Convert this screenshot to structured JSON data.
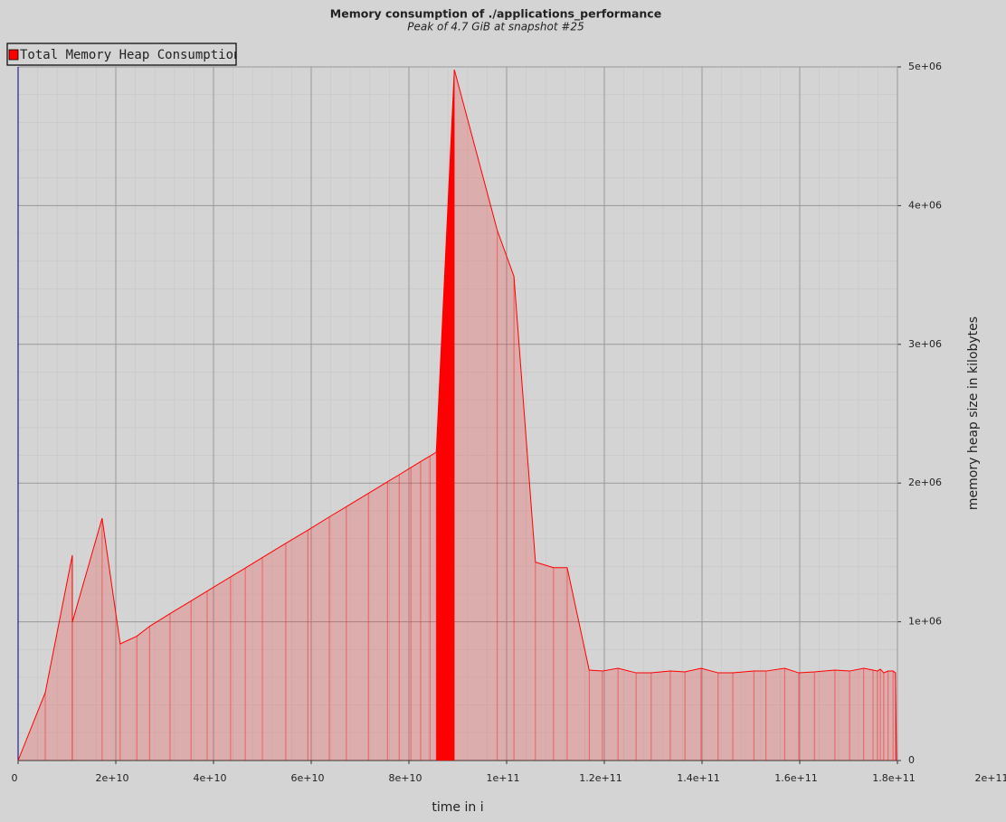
{
  "chart_data": {
    "type": "area",
    "title": "Memory consumption of ./applications_performance",
    "subtitle": "Peak of 4.7 GiB at snapshot #25",
    "x_label": "time in i",
    "y_label": "memory heap size in kilobytes",
    "series": [
      {
        "name": "Total Memory Heap Consumption",
        "color": "#ff0000",
        "x": [
          0,
          5560000000,
          11100000000,
          11100000000,
          17200000000,
          20900000000,
          24300000000,
          26900000000,
          31100000000,
          35400000000,
          38700000000,
          43500000000,
          46500000000,
          50000000000,
          54800000000,
          59300000000,
          63700000000,
          67200000000,
          71700000000,
          75600000000,
          78000000000,
          80400000000,
          82400000000,
          84300000000,
          85600000000,
          89300000000,
          98100000000,
          101500000000,
          105900000000,
          109600000000,
          112400000000,
          116900000000,
          119600000000,
          122800000000,
          126500000000,
          129600000000,
          133500000000,
          136500000000,
          139800000000,
          143300000000,
          146300000000,
          150600000000,
          153100000000,
          156900000000,
          159800000000,
          163000000000,
          167200000000,
          170200000000,
          173100000000,
          175000000000,
          175900000000,
          176500000000,
          177200000000,
          178100000000,
          179100000000,
          179600000000,
          179800000000
        ],
        "values": [
          0,
          489000,
          1480000,
          997000,
          1747000,
          841000,
          896000,
          967000,
          1059000,
          1150000,
          1221000,
          1324000,
          1387000,
          1463000,
          1566000,
          1660000,
          1756000,
          1830000,
          1926000,
          2009000,
          2060000,
          2112000,
          2155000,
          2195000,
          2223000,
          4980000,
          3820000,
          3490000,
          1430000,
          1390000,
          1390000,
          652000,
          645000,
          665000,
          632000,
          632000,
          645000,
          639000,
          665000,
          632000,
          632000,
          645000,
          645000,
          665000,
          632000,
          639000,
          652000,
          645000,
          665000,
          652000,
          645000,
          658000,
          632000,
          645000,
          645000,
          632000,
          0
        ]
      }
    ],
    "xlim": [
      0,
      180000000000
    ],
    "ylim": [
      0,
      5000000
    ],
    "xticks": [
      0,
      {
        "value": 20000000000,
        "label": "2e+10"
      },
      {
        "value": 40000000000,
        "label": "4e+10"
      },
      {
        "value": 60000000000,
        "label": "6e+10"
      },
      {
        "value": 80000000000,
        "label": "8e+10"
      },
      {
        "value": 100000000000,
        "label": "1e+11"
      },
      {
        "value": 120000000000,
        "label": "1.2e+11"
      },
      {
        "value": 140000000000,
        "label": "1.4e+11"
      },
      {
        "value": 160000000000,
        "label": "1.6e+11"
      },
      {
        "value": 180000000000,
        "label": "1.8e+11"
      },
      {
        "value": 200000000000,
        "label": "2e+11"
      }
    ],
    "yticks": [
      0,
      {
        "value": 1000000,
        "label": "1e+06"
      },
      {
        "value": 2000000,
        "label": "2e+06"
      },
      {
        "value": 3000000,
        "label": "3e+06"
      },
      {
        "value": 4000000,
        "label": "4e+06"
      },
      {
        "value": 5000000,
        "label": "5e+06"
      }
    ],
    "grid": true
  }
}
